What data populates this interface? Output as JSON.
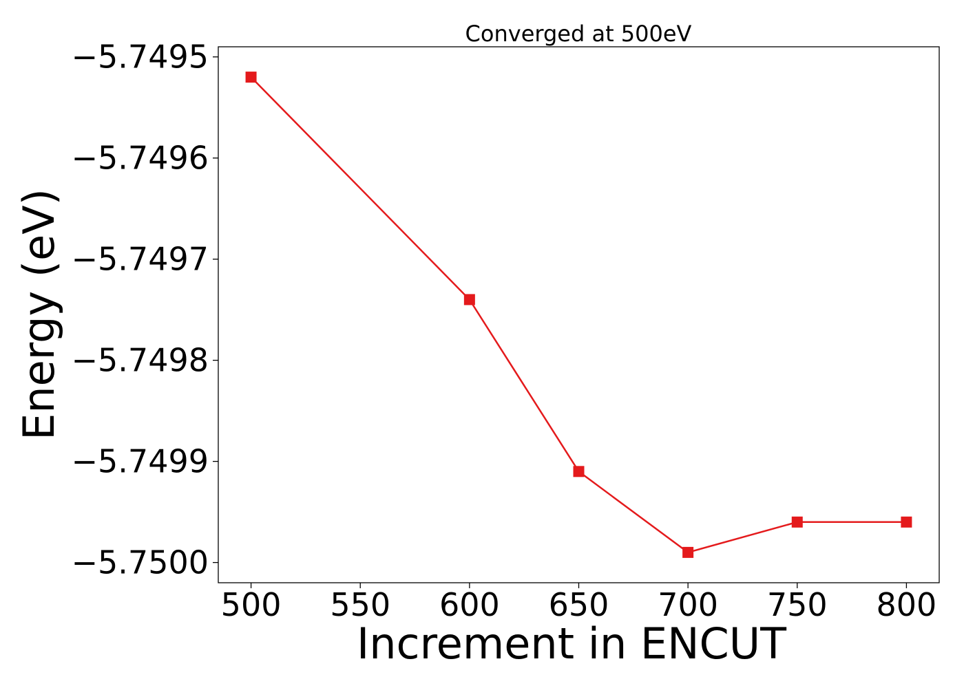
{
  "chart_data": {
    "type": "line",
    "title": "Converged at 500eV",
    "xlabel": "Increment in ENCUT",
    "ylabel": "Energy (eV)",
    "x": [
      500,
      600,
      650,
      700,
      750,
      800
    ],
    "series": [
      {
        "values": [
          -5.74952,
          -5.74974,
          -5.74991,
          -5.74999,
          -5.74996,
          -5.74996
        ],
        "color": "#e41a1c",
        "marker": "square"
      }
    ],
    "xlim": [
      485,
      815
    ],
    "ylim": [
      -5.75002,
      -5.74949
    ],
    "xticks": [
      500,
      550,
      600,
      650,
      700,
      750,
      800
    ],
    "xtick_labels": [
      "500",
      "550",
      "600",
      "650",
      "700",
      "750",
      "800"
    ],
    "yticks": [
      -5.7495,
      -5.7496,
      -5.7497,
      -5.7498,
      -5.7499,
      -5.75
    ],
    "ytick_labels": [
      "−5.7495",
      "−5.7496",
      "−5.7497",
      "−5.7498",
      "−5.7499",
      "−5.7500"
    ],
    "grid": false,
    "legend": false
  }
}
